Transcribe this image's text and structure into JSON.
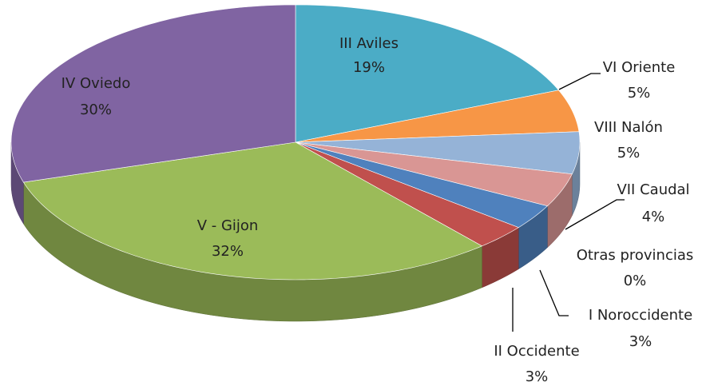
{
  "chart_data": {
    "type": "pie",
    "categories": [
      "III Aviles",
      "VI Oriente",
      "VIII Nalón",
      "VII Caudal",
      "Otras provincias",
      "I Noroccidente",
      "II Occidente",
      "V - Gijon",
      "IV Oviedo"
    ],
    "values": [
      19,
      5,
      5,
      4,
      0,
      3,
      3,
      32,
      30
    ],
    "value_labels": [
      "19%",
      "5%",
      "5%",
      "4%",
      "0%",
      "3%",
      "3%",
      "32%",
      "30%"
    ],
    "colors": [
      "#4bacc6",
      "#f79646",
      "#95b3d7",
      "#d99694",
      "#c3d69b",
      "#4f81bd",
      "#c0504d",
      "#9bbb59",
      "#8064a2"
    ]
  }
}
